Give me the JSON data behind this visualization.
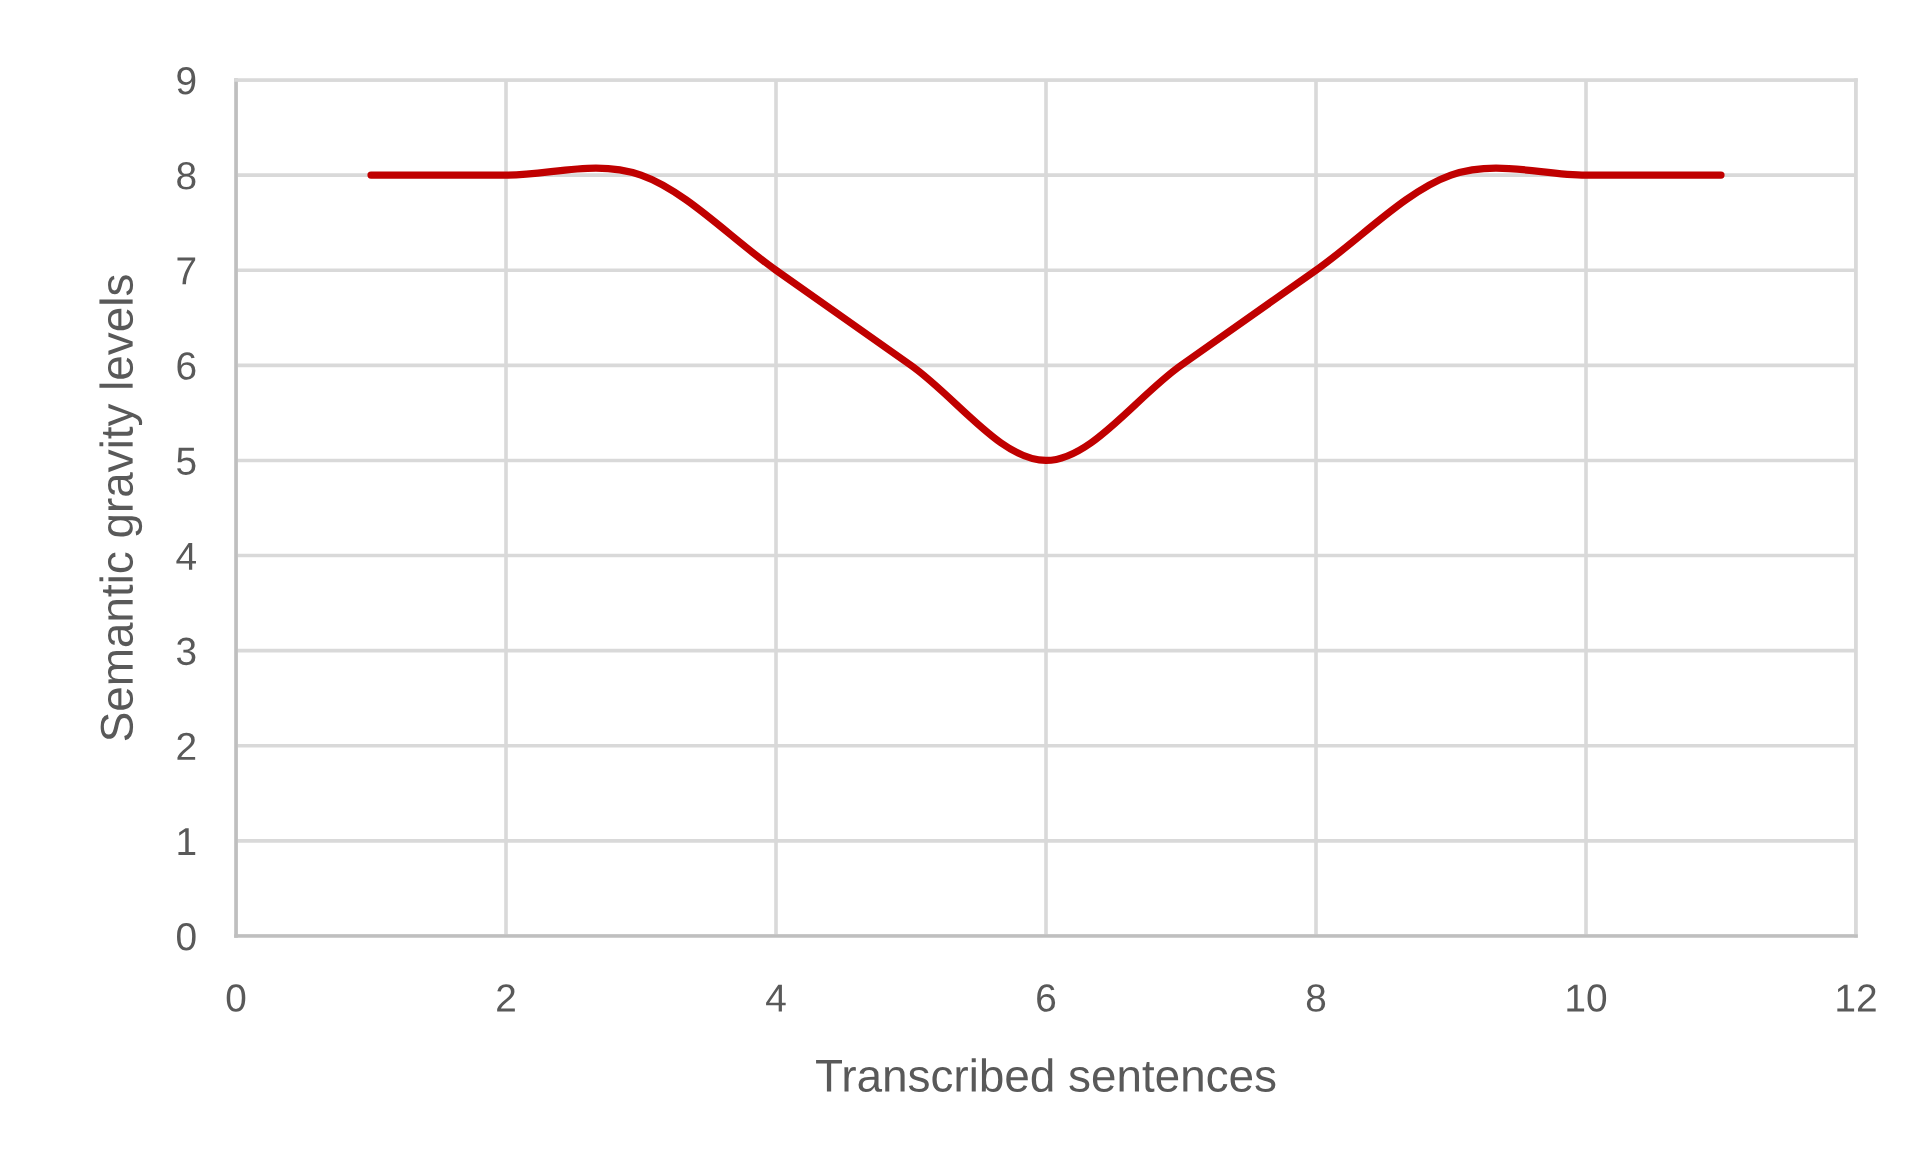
{
  "chart_data": {
    "type": "line",
    "xlabel": "Transcribed sentences",
    "ylabel": "Semantic gravity levels",
    "x": [
      1,
      2,
      3,
      4,
      5,
      6,
      7,
      8,
      9,
      10,
      11
    ],
    "series": [
      {
        "color": "#c00000",
        "values": [
          8,
          8,
          8,
          7,
          6,
          5,
          6,
          7,
          8,
          8,
          8
        ]
      }
    ],
    "xlim": [
      0,
      12
    ],
    "xticks": [
      0,
      2,
      4,
      6,
      8,
      10,
      12
    ],
    "ylim": [
      0,
      9
    ],
    "yticks": [
      0,
      1,
      2,
      3,
      4,
      5,
      6,
      7,
      8,
      9
    ],
    "grid": true
  }
}
